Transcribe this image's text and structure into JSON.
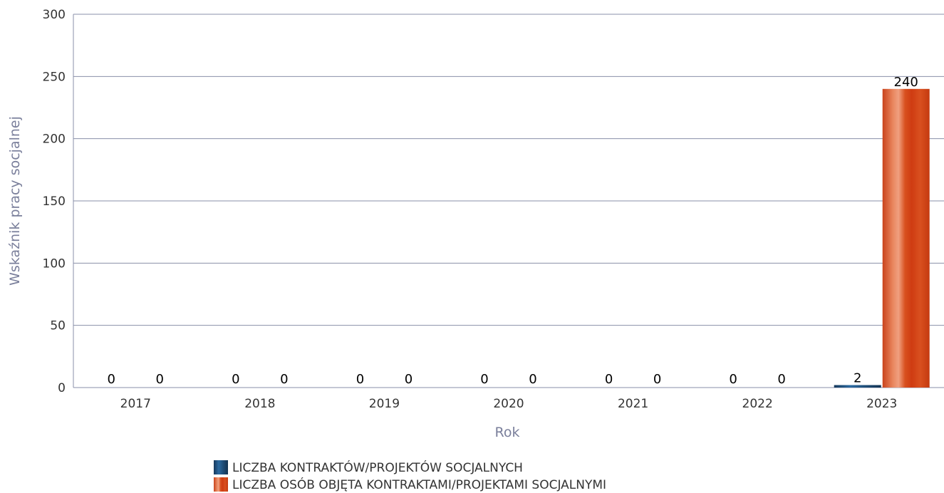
{
  "chart_data": {
    "type": "bar",
    "title": "",
    "xlabel": "Rok",
    "ylabel": "Wskaźnik pracy socjalnej",
    "ylim": [
      0,
      300
    ],
    "yticks": [
      0,
      50,
      100,
      150,
      200,
      250,
      300
    ],
    "grid": true,
    "legend_position": "bottom",
    "categories": [
      "2017",
      "2018",
      "2019",
      "2020",
      "2021",
      "2022",
      "2023"
    ],
    "series": [
      {
        "name": "LICZBA KONTRAKTÓW/PROJEKTÓW SOCJALNYCH",
        "values": [
          0,
          0,
          0,
          0,
          0,
          0,
          2
        ],
        "color": "#1f4e79"
      },
      {
        "name": "LICZBA OSÓB OBJĘTA KONTRAKTAMI/PROJEKTAMI SOCJALNYMI",
        "values": [
          0,
          0,
          0,
          0,
          0,
          0,
          240
        ],
        "color": "#d9451a"
      }
    ]
  }
}
